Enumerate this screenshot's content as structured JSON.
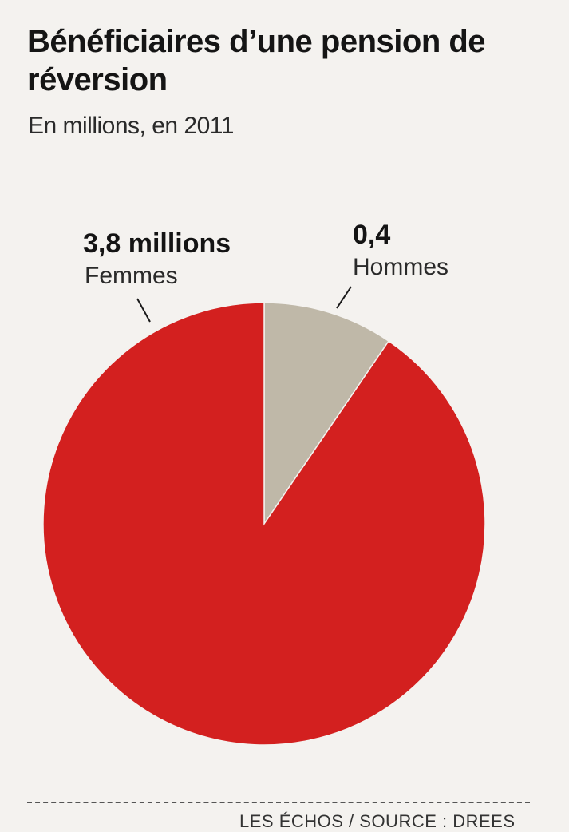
{
  "title": "Bénéficiaires d’une pension de réversion",
  "subtitle": "En millions, en 2011",
  "source": "LES ÉCHOS / SOURCE : DREES",
  "chart_data": {
    "type": "pie",
    "title": "Bénéficiaires d’une pension de réversion",
    "subtitle": "En millions, en 2011",
    "unit": "millions",
    "slices": [
      {
        "name": "Femmes",
        "value": 3.8,
        "value_label": "3,8 millions",
        "color": "#d3201f"
      },
      {
        "name": "Hommes",
        "value": 0.4,
        "value_label": "0,4",
        "color": "#bfb8a8"
      }
    ]
  }
}
